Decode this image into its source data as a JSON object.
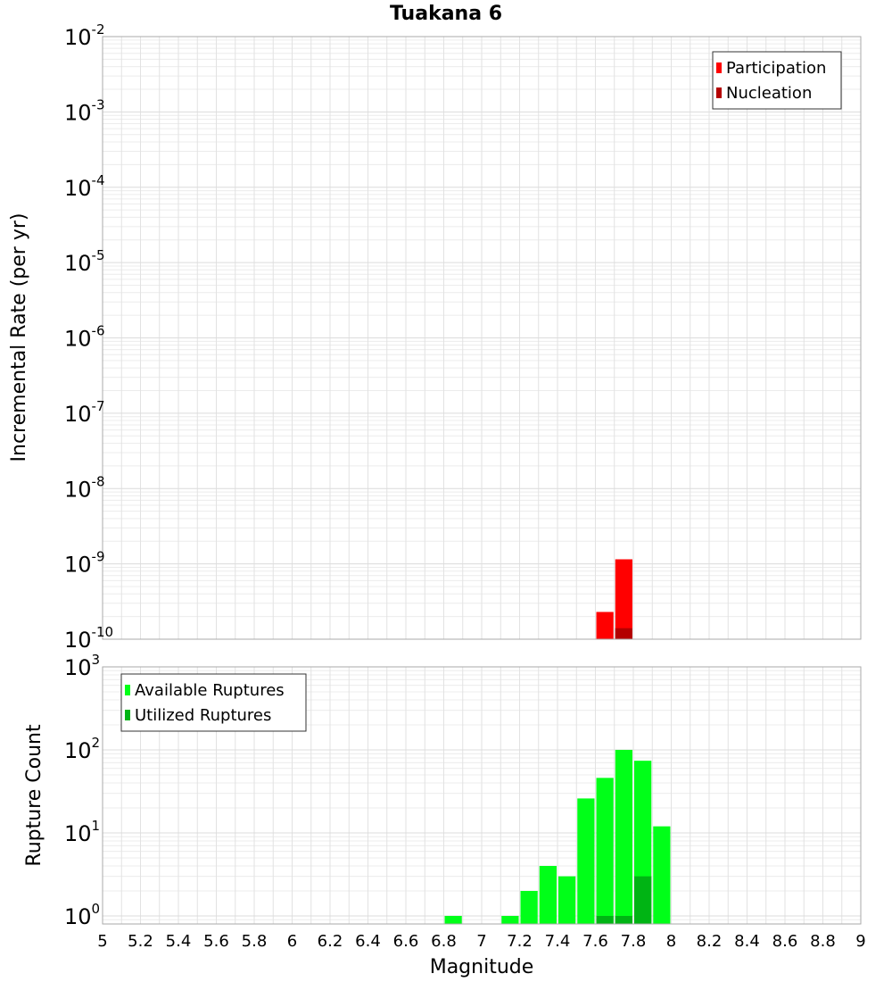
{
  "chart_data": [
    {
      "type": "bar",
      "title": "Tuakana 6",
      "ylabel": "Incremental Rate (per yr)",
      "xlabel": "",
      "xlim": [
        5,
        9
      ],
      "ylim": [
        1e-10,
        0.01
      ],
      "yscale": "log",
      "grid": true,
      "legend_position": "top-right",
      "x_ticks": [
        "5",
        "5.2",
        "5.4",
        "5.6",
        "5.8",
        "6",
        "6.2",
        "6.4",
        "6.6",
        "6.8",
        "7",
        "7.2",
        "7.4",
        "7.6",
        "7.8",
        "8",
        "8.2",
        "8.4",
        "8.6",
        "8.8",
        "9"
      ],
      "y_ticks": [
        {
          "base": "10",
          "exp": "-10"
        },
        {
          "base": "10",
          "exp": "-9"
        },
        {
          "base": "10",
          "exp": "-8"
        },
        {
          "base": "10",
          "exp": "-7"
        },
        {
          "base": "10",
          "exp": "-6"
        },
        {
          "base": "10",
          "exp": "-5"
        },
        {
          "base": "10",
          "exp": "-4"
        },
        {
          "base": "10",
          "exp": "-3"
        },
        {
          "base": "10",
          "exp": "-2"
        }
      ],
      "bin_width": 0.1,
      "series": [
        {
          "name": "Participation",
          "color": "#ff0000",
          "x": [
            7.65,
            7.75
          ],
          "values": [
            2.3e-10,
            1.15e-09
          ]
        },
        {
          "name": "Nucleation",
          "color": "#b40000",
          "x": [
            7.75
          ],
          "values": [
            1.4e-10
          ]
        }
      ]
    },
    {
      "type": "bar",
      "ylabel": "Rupture Count",
      "xlabel": "Magnitude",
      "xlim": [
        5,
        9
      ],
      "ylim": [
        0.8,
        1000
      ],
      "yscale": "log",
      "grid": true,
      "legend_position": "top-left",
      "y_ticks": [
        {
          "base": "10",
          "exp": "0",
          "value": 1
        },
        {
          "base": "10",
          "exp": "1",
          "value": 10
        },
        {
          "base": "10",
          "exp": "2",
          "value": 100
        },
        {
          "base": "10",
          "exp": "3",
          "value": 1000
        }
      ],
      "bin_width": 0.1,
      "series": [
        {
          "name": "Available Ruptures",
          "color": "#00ff18",
          "x": [
            6.85,
            7.15,
            7.25,
            7.35,
            7.45,
            7.55,
            7.65,
            7.75,
            7.85,
            7.95
          ],
          "values": [
            1,
            1,
            2,
            4,
            3,
            26,
            46,
            100,
            74,
            12
          ]
        },
        {
          "name": "Utilized Ruptures",
          "color": "#00b414",
          "x": [
            7.65,
            7.75,
            7.85
          ],
          "values": [
            1,
            1,
            3
          ]
        }
      ]
    }
  ]
}
